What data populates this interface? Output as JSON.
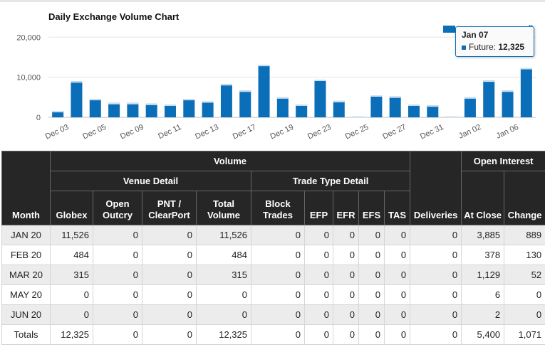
{
  "chart": {
    "title": "Daily Exchange Volume Chart",
    "legend_tail": "n",
    "tooltip": {
      "date": "Jan 07",
      "series": "Future:",
      "value": "12,325"
    }
  },
  "chart_data": {
    "type": "bar",
    "title": "Daily Exchange Volume Chart",
    "ylim": [
      0,
      22000
    ],
    "yticks": [
      "0",
      "10,000",
      "20,000"
    ],
    "ytick_values": [
      0,
      10000,
      20000
    ],
    "xtick_labels": [
      "Dec 03",
      "Dec 05",
      "Dec 09",
      "Dec 11",
      "Dec 13",
      "Dec 17",
      "Dec 19",
      "Dec 23",
      "Dec 25",
      "Dec 27",
      "Dec 31",
      "Jan 02",
      "Jan 06"
    ],
    "xtick_index": [
      0,
      2,
      4,
      6,
      8,
      10,
      12,
      14,
      16,
      18,
      20,
      22,
      24
    ],
    "series": [
      {
        "name": "Future",
        "color": "#0a6eb8",
        "values": [
          1600,
          9000,
          4600,
          3600,
          3600,
          3400,
          3200,
          4600,
          4000,
          8300,
          6700,
          13100,
          5000,
          3200,
          9400,
          4100,
          200,
          5500,
          5200,
          3200,
          3000,
          200,
          5000,
          9200,
          6700,
          12325
        ]
      }
    ],
    "grid": true
  },
  "table": {
    "group_headers": {
      "volume": "Volume",
      "open_interest": "Open Interest",
      "venue_detail": "Venue Detail",
      "trade_type_detail": "Trade Type Detail"
    },
    "columns": [
      "Month",
      "Globex",
      "Open Outcry",
      "PNT / ClearPort",
      "Total Volume",
      "Block Trades",
      "EFP",
      "EFR",
      "EFS",
      "TAS",
      "Deliveries",
      "At Close",
      "Change"
    ],
    "rows": [
      [
        "JAN 20",
        "11,526",
        "0",
        "0",
        "11,526",
        "0",
        "0",
        "0",
        "0",
        "0",
        "0",
        "3,885",
        "889"
      ],
      [
        "FEB 20",
        "484",
        "0",
        "0",
        "484",
        "0",
        "0",
        "0",
        "0",
        "0",
        "0",
        "378",
        "130"
      ],
      [
        "MAR 20",
        "315",
        "0",
        "0",
        "315",
        "0",
        "0",
        "0",
        "0",
        "0",
        "0",
        "1,129",
        "52"
      ],
      [
        "MAY 20",
        "0",
        "0",
        "0",
        "0",
        "0",
        "0",
        "0",
        "0",
        "0",
        "0",
        "6",
        "0"
      ],
      [
        "JUN 20",
        "0",
        "0",
        "0",
        "0",
        "0",
        "0",
        "0",
        "0",
        "0",
        "0",
        "2",
        "0"
      ],
      [
        "Totals",
        "12,325",
        "0",
        "0",
        "12,325",
        "0",
        "0",
        "0",
        "0",
        "0",
        "0",
        "5,400",
        "1,071"
      ]
    ]
  }
}
